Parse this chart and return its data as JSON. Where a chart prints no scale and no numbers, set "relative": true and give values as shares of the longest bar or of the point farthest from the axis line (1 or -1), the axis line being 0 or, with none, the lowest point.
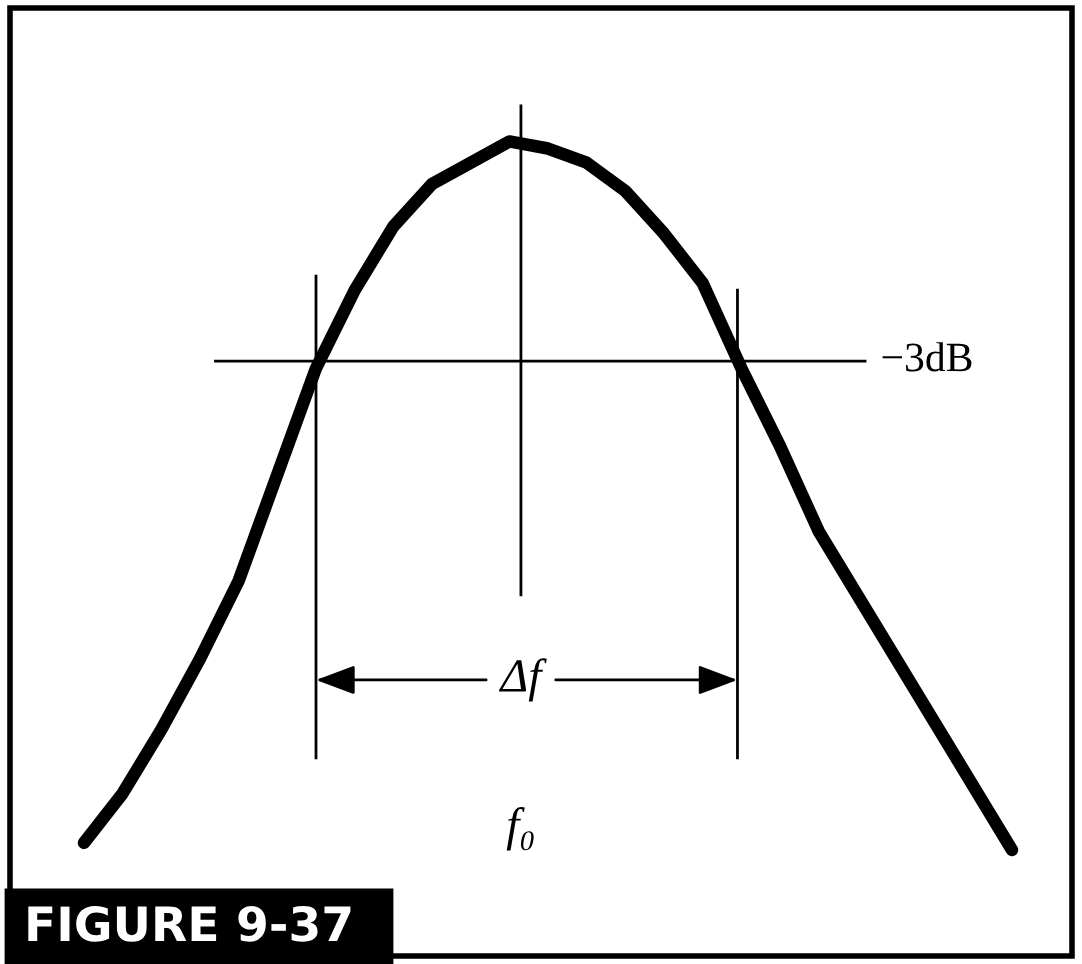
{
  "chart_data": {
    "type": "line",
    "relative": true,
    "title": "FIGURE 9-37",
    "categories": [
      null,
      null,
      null,
      null,
      null,
      null,
      null,
      null,
      null,
      null,
      null,
      null,
      null,
      null,
      null,
      null,
      null,
      null,
      null,
      null,
      null,
      null,
      null,
      null,
      null
    ],
    "series": [
      {
        "color": "#000000",
        "values": [
          0.01,
          0.08,
          0.17,
          0.27,
          0.38,
          0.53,
          0.68,
          0.79,
          0.88,
          0.94,
          0.97,
          1.0,
          0.99,
          0.97,
          0.93,
          0.87,
          0.8,
          0.68,
          0.57,
          0.45,
          0.36,
          0.27,
          0.18,
          0.09,
          0.0
        ]
      }
    ],
    "ref_lines": [
      {
        "axis": "y",
        "value": 0.69,
        "label": "−3dB",
        "color": "#000000"
      }
    ],
    "annotations": [
      "Δf",
      "f₀"
    ],
    "marker": "none",
    "line_style": "solid"
  }
}
